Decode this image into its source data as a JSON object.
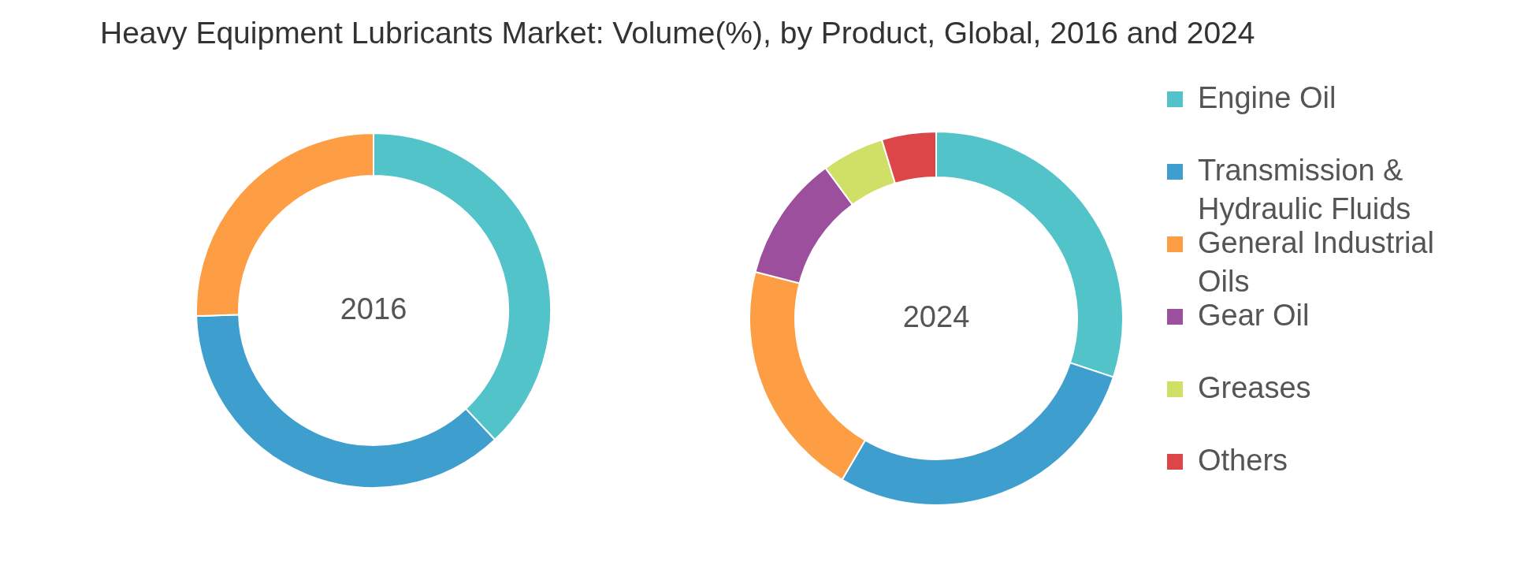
{
  "chart_data": {
    "type": "donut",
    "title": "Heavy Equipment Lubricants Market: Volume(%), by Product, Global, 2016 and 2024",
    "categories": [
      "Engine Oil",
      "Transmission & Hydraulic Fluids",
      "General Industrial Oils",
      "Gear Oil",
      "Greases",
      "Others"
    ],
    "colors": [
      "#52c3c8",
      "#3e9ece",
      "#fd9d44",
      "#9b4f9d",
      "#d0df66",
      "#dd4649"
    ],
    "series": [
      {
        "name": "2016",
        "values": [
          38.0,
          36.5,
          25.5,
          null,
          null,
          null
        ]
      },
      {
        "name": "2024",
        "values": [
          30.1,
          28.3,
          20.6,
          10.9,
          5.4,
          4.7
        ]
      }
    ],
    "legend": "right"
  }
}
